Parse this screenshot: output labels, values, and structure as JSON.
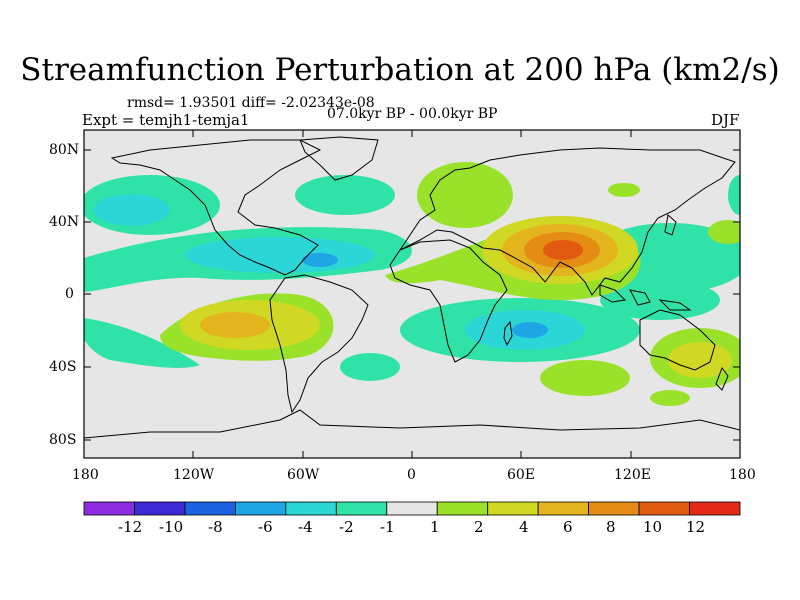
{
  "title": "Streamfunction Perturbation at 200 hPa (km2/s)",
  "stats": "rmsd= 1.93501 diff= -2.02343e-08",
  "experiment": "Expt = temjh1-temja1",
  "period": "07.0kyr BP - 00.0kyr BP",
  "season": "DJF",
  "map": {
    "lat_ticks": [
      "80N",
      "40N",
      "0",
      "40S",
      "80S"
    ],
    "lon_ticks": [
      "180",
      "120W",
      "60W",
      "0",
      "60E",
      "120E",
      "180"
    ]
  },
  "legend": {
    "colors": [
      "#8c2ce0",
      "#3c28d4",
      "#1a62e0",
      "#1ea5e6",
      "#2ad6d6",
      "#2fe3a8",
      "#e6e6e6",
      "#9ae22a",
      "#d0d824",
      "#e3b41e",
      "#e48c14",
      "#e25a10",
      "#e22a16"
    ],
    "labels": [
      "-12",
      "-10",
      "-8",
      "-6",
      "-4",
      "-2",
      "-1",
      "1",
      "2",
      "4",
      "6",
      "8",
      "10",
      "12"
    ]
  },
  "colors": {
    "background": "#e6e6e6",
    "coast": "#000000"
  }
}
